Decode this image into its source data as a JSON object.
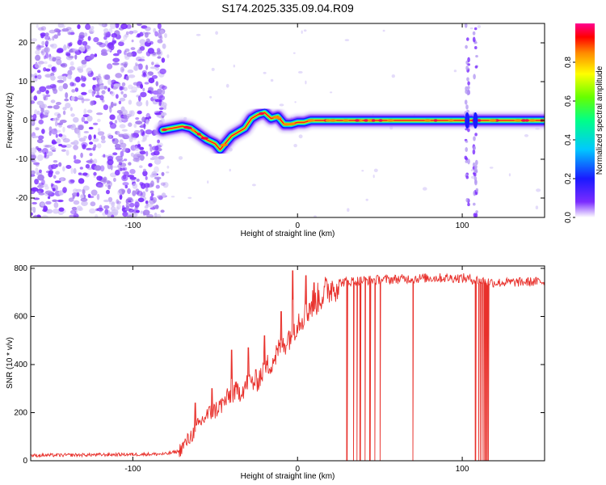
{
  "figure_title": "S174.2025.335.09.04.R09",
  "chart_data": [
    {
      "type": "heatmap",
      "name": "spectrogram",
      "xlabel": "Height of straight line (km)",
      "ylabel": "Frequency (Hz)",
      "xlim": [
        -162,
        150
      ],
      "ylim": [
        -25,
        25
      ],
      "x_ticks": [
        -100,
        0,
        100
      ],
      "x_tick_labels": [
        "-100",
        "0",
        "100"
      ],
      "y_ticks": [
        -20,
        -10,
        0,
        10,
        20
      ],
      "y_tick_labels": [
        "-20",
        "-10",
        "0",
        "10",
        "20"
      ],
      "colorbar": {
        "label": "Normalized spectral amplitude",
        "range": [
          0,
          1
        ],
        "ticks": [
          0.0,
          0.2,
          0.4,
          0.6,
          0.8
        ],
        "tick_labels": [
          "0.0",
          "0.2",
          "0.4",
          "0.6",
          "0.8"
        ]
      },
      "noise_region_x": [
        -162,
        -80
      ],
      "carrier_trace": {
        "x": [
          -82,
          -76,
          -70,
          -65,
          -60,
          -55,
          -50,
          -47,
          -44,
          -40,
          -36,
          -32,
          -28,
          -24,
          -20,
          -16,
          -12,
          -8,
          -4,
          0,
          4,
          8,
          12,
          15,
          150
        ],
        "y": [
          -2.5,
          -2,
          -1.5,
          -2,
          -3.5,
          -5,
          -6,
          -7.5,
          -6,
          -4,
          -3,
          -2,
          0.5,
          1.5,
          2,
          0.5,
          1,
          -1,
          -1,
          -0.5,
          -0.5,
          0,
          0,
          0,
          0
        ]
      },
      "vertical_spikes_x": [
        103,
        108
      ]
    },
    {
      "type": "line",
      "name": "snr",
      "xlabel": "Height of straight line (km)",
      "ylabel": "SNR (10 * v/v)",
      "xlim": [
        -162,
        150
      ],
      "ylim": [
        0,
        810
      ],
      "x_ticks": [
        -100,
        0,
        100
      ],
      "x_tick_labels": [
        "-100",
        "0",
        "100"
      ],
      "y_ticks": [
        0,
        200,
        400,
        600,
        800
      ],
      "y_tick_labels": [
        "0",
        "200",
        "400",
        "600",
        "800"
      ],
      "color": "#e8302b",
      "series": [
        {
          "name": "SNR",
          "x": [
            -162,
            -120,
            -80,
            -72,
            -66,
            -60,
            -55,
            -50,
            -45,
            -40,
            -35,
            -30,
            -25,
            -20,
            -15,
            -10,
            -5,
            0,
            5,
            10,
            15,
            20,
            25,
            30,
            40,
            60,
            80,
            100,
            110,
            120,
            150
          ],
          "y": [
            22,
            25,
            28,
            40,
            90,
            150,
            190,
            210,
            240,
            280,
            290,
            320,
            330,
            380,
            420,
            470,
            520,
            580,
            620,
            660,
            690,
            720,
            740,
            745,
            750,
            755,
            760,
            760,
            750,
            740,
            745
          ]
        }
      ],
      "annotations": {
        "dropout_x": [
          30,
          34,
          36,
          38,
          41,
          44,
          47,
          50,
          70,
          108,
          110,
          111,
          112,
          113,
          114,
          115,
          116
        ],
        "spike_peaks": [
          {
            "x": -62,
            "y": 240
          },
          {
            "x": -52,
            "y": 300
          },
          {
            "x": -40,
            "y": 460
          },
          {
            "x": -30,
            "y": 470
          },
          {
            "x": -20,
            "y": 520
          },
          {
            "x": -10,
            "y": 620
          },
          {
            "x": -3,
            "y": 790
          },
          {
            "x": 5,
            "y": 770
          },
          {
            "x": 10,
            "y": 740
          }
        ]
      }
    }
  ]
}
